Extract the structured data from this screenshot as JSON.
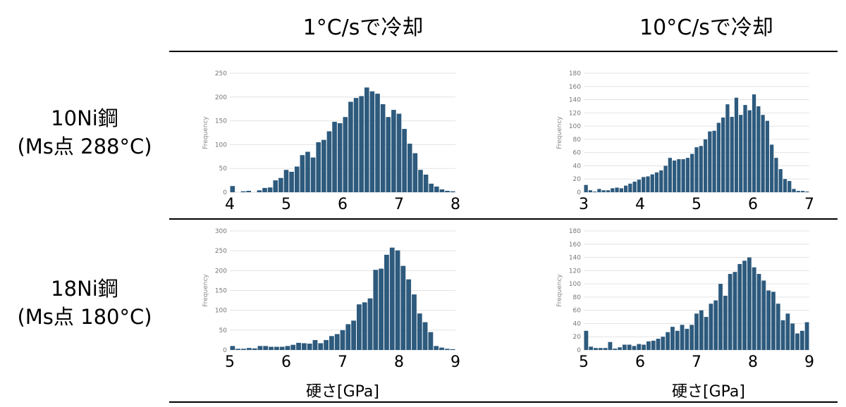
{
  "header": {
    "col1": "1°C/sで冷却",
    "col2": "10°C/sで冷却"
  },
  "rows": [
    {
      "name": "10Ni鋼",
      "ms": "(Ms点 288°C)"
    },
    {
      "name": "18Ni鋼",
      "ms": "(Ms点 180°C)"
    }
  ],
  "x_axis_title": "硬さ[GPa]",
  "chart_data": [
    {
      "type": "bar",
      "title": "",
      "ylabel": "Frequency",
      "xlabel": "",
      "xlim": [
        4,
        8
      ],
      "ylim": [
        0,
        250
      ],
      "yticks": [
        0,
        50,
        100,
        150,
        200,
        250
      ],
      "xticks": [
        4,
        5,
        6,
        7,
        8
      ],
      "color": "#2d5a7d",
      "bin_width": 0.075,
      "values": [
        13,
        0,
        2,
        3,
        0,
        4,
        9,
        10,
        25,
        30,
        47,
        43,
        54,
        78,
        85,
        73,
        105,
        110,
        128,
        148,
        145,
        158,
        190,
        198,
        202,
        220,
        212,
        207,
        185,
        158,
        173,
        165,
        133,
        102,
        82,
        47,
        37,
        18,
        12,
        6,
        3,
        2
      ]
    },
    {
      "type": "bar",
      "title": "",
      "ylabel": "Frequency",
      "xlabel": "",
      "xlim": [
        3,
        7
      ],
      "ylim": [
        0,
        180
      ],
      "yticks": [
        0,
        20,
        40,
        60,
        80,
        100,
        120,
        140,
        160,
        180
      ],
      "xticks": [
        3,
        4,
        5,
        6,
        7
      ],
      "color": "#2d5a7d",
      "bin_width": 0.07,
      "values": [
        11,
        3,
        1,
        5,
        3,
        3,
        6,
        7,
        6,
        10,
        13,
        16,
        19,
        23,
        24,
        27,
        30,
        33,
        40,
        52,
        48,
        50,
        50,
        52,
        58,
        68,
        70,
        80,
        92,
        93,
        105,
        113,
        133,
        114,
        143,
        117,
        132,
        124,
        148,
        130,
        117,
        108,
        72,
        52,
        35,
        20,
        17,
        5,
        2,
        2,
        1
      ]
    },
    {
      "type": "bar",
      "title": "",
      "ylabel": "Frequency",
      "xlabel": "",
      "xlim": [
        5,
        9
      ],
      "ylim": [
        0,
        300
      ],
      "yticks": [
        0,
        50,
        100,
        150,
        200,
        250,
        300
      ],
      "xticks": [
        5,
        6,
        7,
        8,
        9
      ],
      "color": "#2d5a7d",
      "bin_width": 0.075,
      "values": [
        10,
        3,
        3,
        5,
        4,
        10,
        10,
        8,
        8,
        8,
        10,
        13,
        18,
        17,
        16,
        25,
        17,
        25,
        35,
        40,
        50,
        65,
        74,
        115,
        120,
        130,
        202,
        205,
        240,
        258,
        251,
        212,
        178,
        140,
        92,
        70,
        45,
        10,
        6,
        3,
        2
      ]
    },
    {
      "type": "bar",
      "title": "",
      "ylabel": "Frequency",
      "xlabel": "",
      "xlim": [
        5,
        9
      ],
      "ylim": [
        0,
        180
      ],
      "yticks": [
        0,
        20,
        40,
        60,
        80,
        100,
        120,
        140,
        160,
        180
      ],
      "xticks": [
        5,
        6,
        7,
        8,
        9
      ],
      "color": "#2d5a7d",
      "bin_width": 0.07,
      "values": [
        29,
        5,
        3,
        3,
        3,
        12,
        2,
        4,
        8,
        8,
        6,
        9,
        8,
        13,
        14,
        17,
        20,
        27,
        35,
        29,
        38,
        32,
        38,
        55,
        60,
        50,
        70,
        75,
        100,
        82,
        115,
        118,
        130,
        135,
        140,
        125,
        115,
        105,
        90,
        88,
        70,
        45,
        55,
        40,
        25,
        29,
        42
      ]
    }
  ]
}
